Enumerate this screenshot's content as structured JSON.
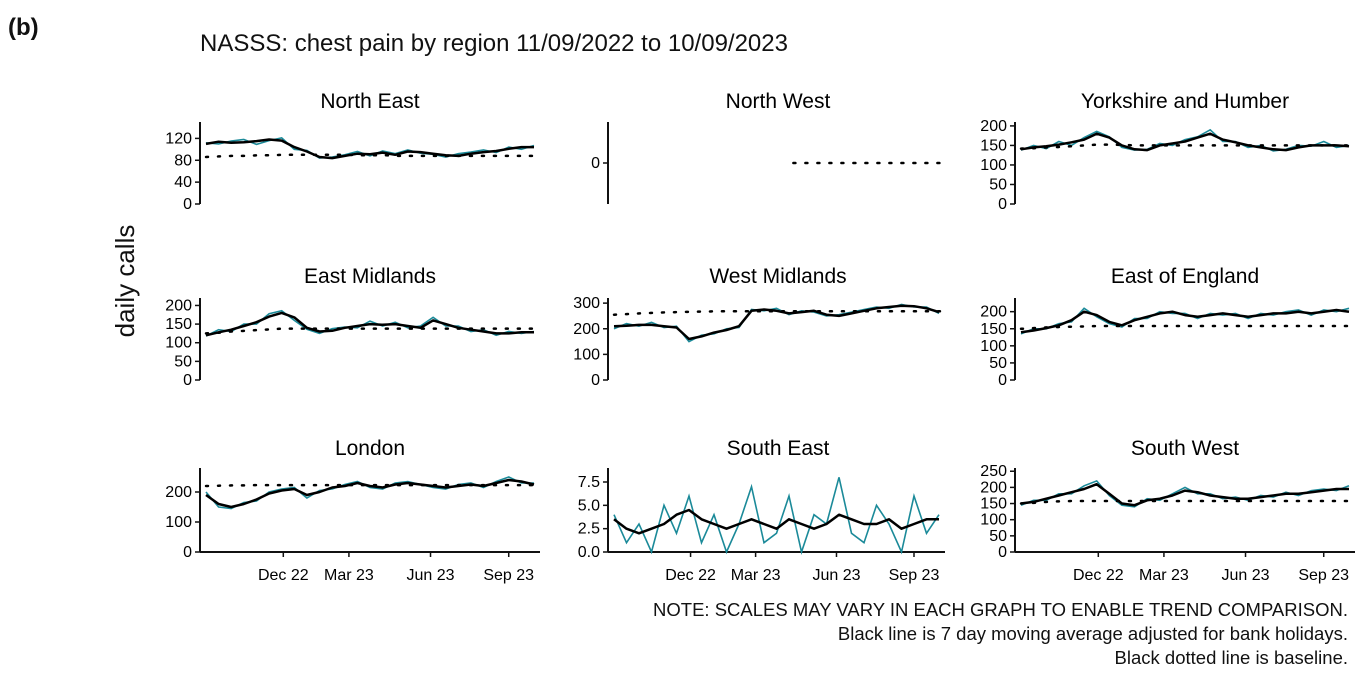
{
  "figure_label": "(b)",
  "title": "NASSS: chest pain by region 11/09/2022 to 10/09/2023",
  "ylabel": "daily calls",
  "notes": [
    "NOTE: SCALES MAY VARY IN EACH GRAPH TO ENABLE TREND COMPARISON.",
    "Black line is 7 day moving average adjusted for bank holidays.",
    "Black dotted line is baseline."
  ],
  "colors": {
    "daily": "#1b8a99",
    "average": "#000000",
    "baseline": "#000000"
  },
  "x_tick_labels": [
    "Dec 22",
    "Mar 23",
    "Jun 23",
    "Sep 23"
  ],
  "chart_data": [
    {
      "type": "line",
      "title": "North East",
      "yticks": [
        "0",
        "40",
        "80",
        "120"
      ],
      "ylim": [
        0,
        150
      ],
      "series": [
        {
          "values": [
            110,
            114,
            112,
            113,
            115,
            118,
            116,
            104,
            96,
            86,
            84,
            88,
            92,
            91,
            94,
            90,
            96,
            95,
            92,
            89,
            88,
            92,
            95,
            97,
            101,
            104,
            104
          ]
        },
        {
          "values": [
            86,
            87,
            88,
            88,
            89,
            89,
            90,
            90,
            90,
            90,
            90,
            90,
            89,
            89,
            89,
            88,
            88,
            88,
            88,
            88,
            88,
            88,
            88,
            88,
            88,
            88,
            88
          ]
        },
        {
          "values": [
            112,
            110,
            115,
            118,
            109,
            116,
            121,
            100,
            98,
            84,
            86,
            90,
            96,
            88,
            97,
            92,
            99,
            93,
            91,
            86,
            92,
            95,
            99,
            94,
            104,
            100,
            107
          ]
        }
      ]
    },
    {
      "type": "line",
      "title": "North West",
      "yticks": [
        "0"
      ],
      "ylim": [
        -1,
        1
      ],
      "series": [
        {
          "values": []
        },
        {
          "values": [
            0,
            0,
            0,
            0,
            0,
            0,
            0,
            0,
            0,
            0,
            0,
            0,
            0,
            0,
            0,
            0,
            0,
            0,
            0,
            0,
            0,
            0,
            0,
            0,
            0,
            0,
            0
          ]
        },
        {
          "values": []
        }
      ]
    },
    {
      "type": "line",
      "title": "Yorkshire and Humber",
      "yticks": [
        "0",
        "50",
        "100",
        "150",
        "200"
      ],
      "ylim": [
        0,
        210
      ],
      "series": [
        {
          "values": [
            140,
            145,
            148,
            152,
            158,
            165,
            180,
            170,
            150,
            140,
            138,
            150,
            155,
            160,
            170,
            180,
            165,
            158,
            150,
            145,
            140,
            138,
            145,
            150,
            150,
            150,
            148
          ]
        },
        {
          "values": [
            142,
            143,
            145,
            146,
            148,
            150,
            152,
            152,
            151,
            150,
            150,
            150,
            150,
            150,
            150,
            150,
            150,
            150,
            150,
            150,
            150,
            150,
            150,
            150,
            150,
            150,
            150
          ]
        },
        {
          "values": [
            138,
            150,
            142,
            160,
            150,
            170,
            186,
            172,
            145,
            138,
            140,
            155,
            150,
            165,
            172,
            190,
            160,
            160,
            145,
            150,
            136,
            140,
            150,
            148,
            160,
            145,
            150
          ]
        }
      ]
    },
    {
      "type": "line",
      "title": "East Midlands",
      "yticks": [
        "0",
        "50",
        "100",
        "150",
        "200"
      ],
      "ylim": [
        0,
        220
      ],
      "series": [
        {
          "values": [
            120,
            128,
            135,
            145,
            155,
            170,
            180,
            168,
            140,
            130,
            132,
            140,
            145,
            150,
            148,
            150,
            145,
            140,
            160,
            150,
            140,
            135,
            130,
            125,
            125,
            128,
            128
          ]
        },
        {
          "values": [
            125,
            127,
            130,
            132,
            134,
            136,
            138,
            138,
            138,
            138,
            138,
            138,
            138,
            138,
            138,
            138,
            138,
            138,
            138,
            138,
            138,
            138,
            138,
            138,
            138,
            138,
            138
          ]
        },
        {
          "values": [
            118,
            135,
            130,
            150,
            150,
            178,
            186,
            160,
            136,
            125,
            138,
            142,
            140,
            158,
            145,
            155,
            140,
            145,
            168,
            145,
            145,
            130,
            135,
            120,
            130,
            125,
            130
          ]
        }
      ]
    },
    {
      "type": "line",
      "title": "West Midlands",
      "yticks": [
        "0",
        "100",
        "200",
        "300"
      ],
      "ylim": [
        0,
        320
      ],
      "series": [
        {
          "values": [
            210,
            212,
            215,
            215,
            210,
            205,
            160,
            170,
            185,
            195,
            210,
            270,
            275,
            270,
            260,
            265,
            270,
            255,
            250,
            260,
            270,
            280,
            285,
            290,
            288,
            280,
            265
          ]
        },
        {
          "values": [
            255,
            257,
            260,
            262,
            264,
            265,
            266,
            267,
            268,
            268,
            268,
            268,
            268,
            268,
            268,
            268,
            268,
            268,
            268,
            268,
            268,
            268,
            268,
            268,
            268,
            268,
            268
          ]
        },
        {
          "values": [
            200,
            220,
            210,
            225,
            205,
            210,
            150,
            175,
            180,
            200,
            205,
            275,
            270,
            280,
            255,
            270,
            265,
            250,
            255,
            265,
            275,
            285,
            280,
            295,
            285,
            285,
            260
          ]
        }
      ]
    },
    {
      "type": "line",
      "title": "East of England",
      "yticks": [
        "0",
        "50",
        "100",
        "150",
        "200"
      ],
      "ylim": [
        0,
        240
      ],
      "series": [
        {
          "values": [
            140,
            145,
            152,
            160,
            175,
            200,
            190,
            170,
            160,
            175,
            185,
            195,
            200,
            190,
            185,
            190,
            195,
            190,
            185,
            190,
            195,
            195,
            200,
            195,
            200,
            205,
            200
          ]
        },
        {
          "values": [
            150,
            152,
            154,
            155,
            156,
            157,
            158,
            158,
            158,
            158,
            158,
            158,
            158,
            158,
            158,
            158,
            158,
            158,
            158,
            158,
            158,
            158,
            158,
            158,
            158,
            158,
            158
          ]
        },
        {
          "values": [
            135,
            150,
            150,
            165,
            170,
            210,
            185,
            165,
            155,
            180,
            180,
            200,
            195,
            195,
            180,
            195,
            190,
            195,
            180,
            195,
            190,
            200,
            205,
            190,
            205,
            200,
            210
          ]
        }
      ]
    },
    {
      "type": "line",
      "title": "London",
      "yticks": [
        "0",
        "100",
        "200"
      ],
      "ylim": [
        0,
        280
      ],
      "series": [
        {
          "values": [
            190,
            160,
            150,
            160,
            175,
            195,
            205,
            210,
            190,
            200,
            215,
            220,
            230,
            220,
            215,
            225,
            230,
            225,
            220,
            215,
            220,
            225,
            220,
            230,
            240,
            235,
            225
          ]
        },
        {
          "values": [
            220,
            221,
            222,
            222,
            223,
            223,
            223,
            223,
            223,
            223,
            223,
            223,
            223,
            223,
            223,
            223,
            223,
            223,
            223,
            223,
            223,
            223,
            223,
            223,
            223,
            223,
            223
          ]
        },
        {
          "values": [
            200,
            150,
            145,
            165,
            170,
            200,
            210,
            215,
            180,
            205,
            210,
            225,
            235,
            215,
            210,
            230,
            235,
            225,
            215,
            210,
            225,
            230,
            215,
            235,
            250,
            230,
            230
          ]
        }
      ]
    },
    {
      "type": "line",
      "title": "South East",
      "yticks": [
        "0.0",
        "2.5",
        "5.0",
        "7.5"
      ],
      "ylim": [
        0,
        9
      ],
      "series": [
        {
          "values": [
            3.5,
            2.5,
            2.0,
            2.5,
            3.0,
            4.0,
            4.5,
            3.5,
            3.0,
            2.5,
            3.0,
            3.5,
            3.0,
            2.5,
            3.5,
            3.0,
            2.5,
            3.0,
            4.0,
            3.5,
            3.0,
            3.0,
            3.5,
            2.5,
            3.0,
            3.5,
            3.5
          ]
        },
        {
          "values": []
        },
        {
          "values": [
            4,
            1,
            3,
            0,
            5,
            2,
            6,
            1,
            4,
            0,
            3,
            7,
            1,
            2,
            6,
            0,
            4,
            3,
            8,
            2,
            1,
            5,
            3,
            0,
            6,
            2,
            4
          ]
        }
      ]
    },
    {
      "type": "line",
      "title": "South West",
      "yticks": [
        "0",
        "50",
        "100",
        "150",
        "200",
        "250"
      ],
      "ylim": [
        0,
        260
      ],
      "series": [
        {
          "values": [
            150,
            155,
            165,
            175,
            185,
            195,
            210,
            180,
            150,
            145,
            160,
            165,
            175,
            190,
            185,
            175,
            170,
            165,
            165,
            170,
            175,
            180,
            180,
            185,
            190,
            195,
            195
          ]
        },
        {
          "values": [
            150,
            152,
            155,
            157,
            158,
            158,
            158,
            158,
            158,
            158,
            158,
            158,
            158,
            158,
            158,
            158,
            158,
            158,
            158,
            158,
            158,
            158,
            158,
            158,
            158,
            158,
            158
          ]
        },
        {
          "values": [
            145,
            160,
            160,
            180,
            180,
            205,
            220,
            175,
            145,
            140,
            165,
            160,
            180,
            200,
            180,
            180,
            165,
            170,
            160,
            175,
            170,
            185,
            175,
            190,
            195,
            190,
            205
          ]
        }
      ]
    }
  ]
}
